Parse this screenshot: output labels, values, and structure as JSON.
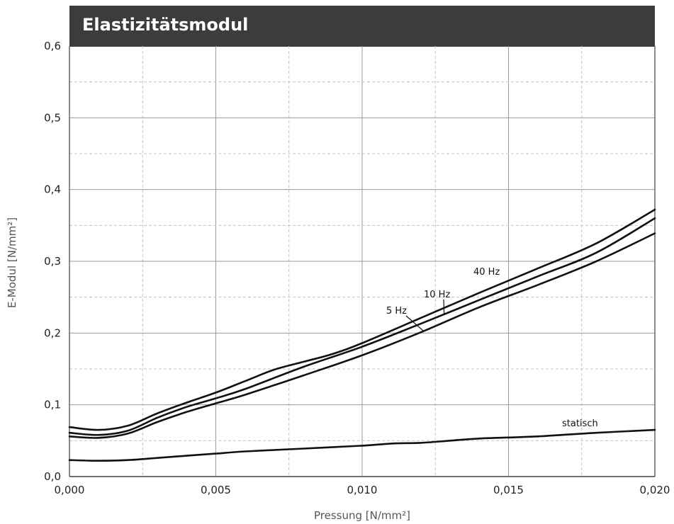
{
  "chart_data": {
    "type": "line",
    "title": "Elastizitätsmodul",
    "xlabel": "Pressung [N/mm²]",
    "ylabel": "E-Modul [N/mm²]",
    "xlim": [
      0,
      0.02
    ],
    "ylim": [
      0,
      0.6
    ],
    "x_ticks": [
      "0,000",
      "0,005",
      "0,010",
      "0,015",
      "0,020"
    ],
    "y_ticks": [
      "0,0",
      "0,1",
      "0,2",
      "0,3",
      "0,4",
      "0,5",
      "0,6"
    ],
    "grid": true,
    "legend": "none",
    "series": [
      {
        "name": "40 Hz",
        "x": [
          0,
          0.001,
          0.002,
          0.003,
          0.004,
          0.005,
          0.006,
          0.007,
          0.008,
          0.009,
          0.01,
          0.012,
          0.014,
          0.016,
          0.018,
          0.02
        ],
        "y": [
          0.069,
          0.065,
          0.071,
          0.088,
          0.103,
          0.117,
          0.133,
          0.149,
          0.16,
          0.171,
          0.186,
          0.221,
          0.256,
          0.29,
          0.325,
          0.372
        ]
      },
      {
        "name": "10 Hz",
        "x": [
          0,
          0.001,
          0.002,
          0.003,
          0.004,
          0.005,
          0.006,
          0.008,
          0.01,
          0.012,
          0.014,
          0.016,
          0.018,
          0.02
        ],
        "y": [
          0.061,
          0.058,
          0.064,
          0.082,
          0.097,
          0.109,
          0.122,
          0.153,
          0.181,
          0.213,
          0.246,
          0.279,
          0.312,
          0.36
        ]
      },
      {
        "name": "5 Hz",
        "x": [
          0,
          0.001,
          0.002,
          0.003,
          0.004,
          0.005,
          0.006,
          0.008,
          0.01,
          0.012,
          0.014,
          0.016,
          0.018,
          0.02
        ],
        "y": [
          0.056,
          0.054,
          0.06,
          0.076,
          0.09,
          0.102,
          0.114,
          0.141,
          0.169,
          0.201,
          0.236,
          0.267,
          0.3,
          0.339
        ]
      },
      {
        "name": "statisch",
        "x": [
          0,
          0.001,
          0.002,
          0.003,
          0.004,
          0.005,
          0.006,
          0.008,
          0.01,
          0.011,
          0.012,
          0.013,
          0.014,
          0.016,
          0.018,
          0.02
        ],
        "y": [
          0.023,
          0.022,
          0.023,
          0.026,
          0.029,
          0.032,
          0.035,
          0.039,
          0.043,
          0.046,
          0.047,
          0.05,
          0.053,
          0.056,
          0.061,
          0.065
        ]
      }
    ]
  }
}
